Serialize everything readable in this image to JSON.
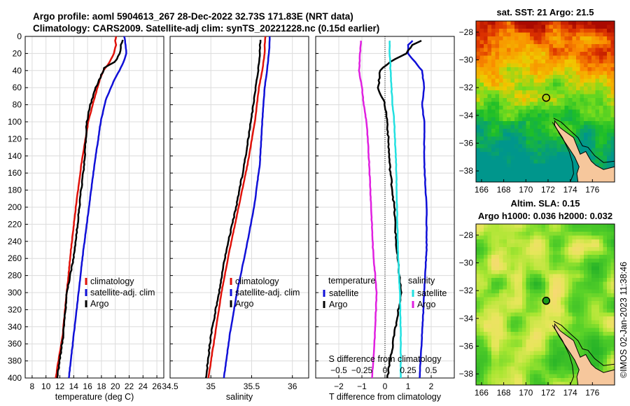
{
  "titles": {
    "line1": "Argo profile: aoml 5904613_267 28-Dec-2022 32.73S 171.83E (NRT data)",
    "line2": "Climatology: CARS2009. Satellite-adj clim: synTS_20221228.nc (0.15d earlier)"
  },
  "watermark": "©IMOS 02-Jan-2023 11:38:46",
  "colors": {
    "climatology": "#e0120a",
    "satellite": "#1010d8",
    "argo": "#000000",
    "sal_satellite": "#22e0e0",
    "sal_argo": "#e020e0"
  },
  "chart_data": [
    {
      "type": "line",
      "name": "temperature-profile",
      "xlabel": "temperature (deg C)",
      "ylabel": "",
      "xlim": [
        7,
        27
      ],
      "ylim": [
        0,
        400
      ],
      "xticks": [
        8,
        10,
        12,
        14,
        16,
        18,
        20,
        22,
        24,
        26
      ],
      "yticks": [
        0,
        20,
        40,
        60,
        80,
        100,
        120,
        140,
        160,
        180,
        200,
        220,
        240,
        260,
        280,
        300,
        320,
        340,
        360,
        380,
        400
      ],
      "legend": [
        "climatology",
        "satellite-adj. clim",
        "Argo"
      ],
      "series": [
        {
          "name": "climatology",
          "depth": [
            0,
            5,
            10,
            20,
            30,
            40,
            50,
            75,
            100,
            150,
            200,
            250,
            300,
            350,
            400
          ],
          "values": [
            20.1,
            20.0,
            20.1,
            19.8,
            19.2,
            18.3,
            17.8,
            16.9,
            16.1,
            15.1,
            14.3,
            13.6,
            13.0,
            12.4,
            11.4
          ]
        },
        {
          "name": "satellite-adj. clim",
          "depth": [
            0,
            5,
            10,
            20,
            30,
            40,
            50,
            75,
            100,
            150,
            200,
            250,
            300,
            350,
            400
          ],
          "values": [
            21.3,
            21.4,
            21.5,
            21.6,
            21.2,
            20.6,
            19.9,
            18.6,
            17.9,
            17.0,
            16.2,
            15.4,
            14.7,
            14.0,
            13.3
          ]
        },
        {
          "name": "Argo",
          "depth": [
            4,
            10,
            20,
            30,
            37,
            45,
            60,
            80,
            100,
            150,
            200,
            250,
            300,
            350,
            400
          ],
          "values": [
            21.1,
            20.8,
            20.7,
            19.9,
            18.4,
            18.0,
            17.2,
            16.4,
            15.9,
            15.5,
            14.8,
            14.2,
            13.0,
            12.5,
            11.6
          ]
        }
      ]
    },
    {
      "type": "line",
      "name": "salinity-profile",
      "xlabel": "salinity",
      "ylabel": "",
      "xlim": [
        34.5,
        36.2
      ],
      "ylim": [
        0,
        400
      ],
      "xticks": [
        34.5,
        35,
        35.5,
        36
      ],
      "yticks": [
        0,
        20,
        40,
        60,
        80,
        100,
        120,
        140,
        160,
        180,
        200,
        220,
        240,
        260,
        280,
        300,
        320,
        340,
        360,
        380,
        400
      ],
      "legend": [
        "climatology",
        "satellite-adj. clim",
        "Argo"
      ],
      "series": [
        {
          "name": "climatology",
          "depth": [
            0,
            10,
            20,
            40,
            60,
            100,
            150,
            200,
            250,
            300,
            350,
            400
          ],
          "values": [
            35.67,
            35.66,
            35.66,
            35.63,
            35.59,
            35.54,
            35.45,
            35.34,
            35.23,
            35.13,
            35.05,
            34.97
          ]
        },
        {
          "name": "satellite-adj. clim",
          "depth": [
            0,
            10,
            20,
            40,
            60,
            100,
            150,
            200,
            250,
            300,
            350,
            400
          ],
          "values": [
            35.72,
            35.72,
            35.71,
            35.69,
            35.66,
            35.63,
            35.6,
            35.53,
            35.43,
            35.32,
            35.23,
            35.16
          ]
        },
        {
          "name": "Argo",
          "depth": [
            4,
            10,
            20,
            40,
            60,
            100,
            150,
            200,
            250,
            300,
            350,
            400
          ],
          "values": [
            35.61,
            35.6,
            35.6,
            35.58,
            35.55,
            35.49,
            35.41,
            35.31,
            35.19,
            35.1,
            35.0,
            34.94
          ]
        }
      ]
    },
    {
      "type": "line",
      "name": "difference-profile",
      "xlabel": "T difference from climatology",
      "top_xlabel": "S difference from climatology",
      "xlim": [
        -3,
        3
      ],
      "ylim": [
        0,
        400
      ],
      "xticks": [
        -2,
        -1,
        0,
        1,
        2
      ],
      "top_ticks": [
        -0.5,
        -0.25,
        0,
        0.25,
        0.5
      ],
      "yticks": [
        0,
        20,
        40,
        60,
        80,
        100,
        120,
        140,
        160,
        180,
        200,
        220,
        240,
        260,
        280,
        300,
        320,
        340,
        360,
        380,
        400
      ],
      "legend_temperature": {
        "title": "temperature",
        "items": [
          "satellite",
          "Argo"
        ]
      },
      "legend_salinity": {
        "title": "salinity",
        "items": [
          "satellite",
          "Argo"
        ]
      },
      "series": [
        {
          "name": "temperature satellite",
          "depth": [
            5,
            10,
            20,
            30,
            40,
            60,
            80,
            100,
            150,
            200,
            250,
            300,
            350,
            400
          ],
          "values": [
            1.2,
            1.0,
            1.0,
            1.3,
            1.6,
            1.7,
            1.6,
            1.7,
            1.7,
            1.8,
            1.8,
            1.7,
            1.6,
            1.5
          ]
        },
        {
          "name": "temperature Argo",
          "depth": [
            5,
            10,
            20,
            30,
            40,
            60,
            80,
            100,
            150,
            200,
            250,
            300,
            350,
            400
          ],
          "values": [
            1.6,
            1.2,
            0.9,
            0.2,
            -0.2,
            -0.3,
            0.0,
            0.1,
            0.2,
            0.4,
            0.5,
            0.7,
            0.4,
            0.1
          ]
        },
        {
          "name": "salinity satellite",
          "depth": [
            5,
            20,
            40,
            80,
            100,
            150,
            200,
            250,
            300,
            350,
            400
          ],
          "values": [
            0.05,
            0.05,
            0.06,
            0.08,
            0.1,
            0.12,
            0.13,
            0.14,
            0.16,
            0.17,
            0.17
          ]
        },
        {
          "name": "salinity Argo",
          "depth": [
            5,
            20,
            40,
            60,
            80,
            100,
            150,
            200,
            250,
            300,
            350,
            400
          ],
          "values": [
            -0.26,
            -0.27,
            -0.28,
            -0.25,
            -0.23,
            -0.2,
            -0.17,
            -0.15,
            -0.13,
            -0.09,
            -0.11,
            -0.14
          ]
        }
      ]
    },
    {
      "type": "heatmap",
      "name": "sst-map",
      "title": "sat. SST: 21 Argo: 21.5",
      "xlim": [
        165.5,
        178
      ],
      "ylim": [
        -38.8,
        -27.2
      ],
      "xticks": [
        166,
        168,
        170,
        172,
        174,
        176
      ],
      "yticks": [
        -28,
        -30,
        -32,
        -34,
        -36,
        -38
      ],
      "marker": {
        "lon": 171.83,
        "lat": -32.73
      }
    },
    {
      "type": "heatmap",
      "name": "sla-map",
      "title": "Altim. SLA: 0.15",
      "subtitle": "Argo h1000: 0.036 h2000: 0.032",
      "xlim": [
        165.5,
        178
      ],
      "ylim": [
        -38.8,
        -27.2
      ],
      "xticks": [
        166,
        168,
        170,
        172,
        174,
        176
      ],
      "yticks": [
        -28,
        -30,
        -32,
        -34,
        -36,
        -38
      ],
      "marker": {
        "lon": 171.83,
        "lat": -32.73
      }
    }
  ]
}
